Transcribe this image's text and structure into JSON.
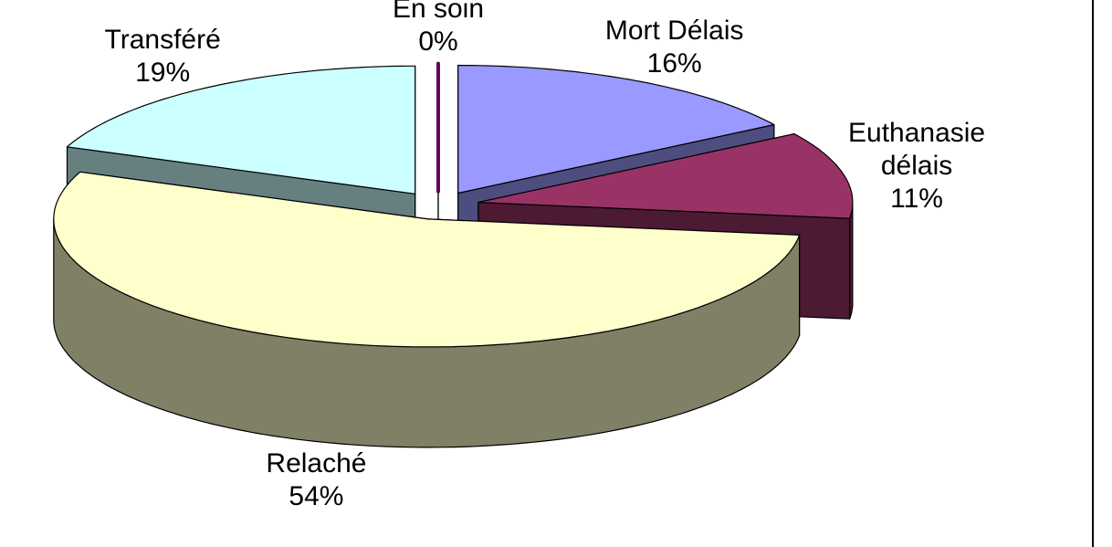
{
  "chart_data": {
    "type": "pie3d",
    "categories": [
      "Mort Délais",
      "Euthanasie délais",
      "Relaché",
      "Transféré",
      "En soin"
    ],
    "values": [
      16,
      11,
      54,
      19,
      0
    ],
    "value_labels": [
      "16%",
      "11%",
      "54%",
      "19%",
      "0%"
    ],
    "colors": [
      "#9999ff",
      "#993366",
      "#ffffcc",
      "#ccffff",
      "#660066"
    ]
  }
}
